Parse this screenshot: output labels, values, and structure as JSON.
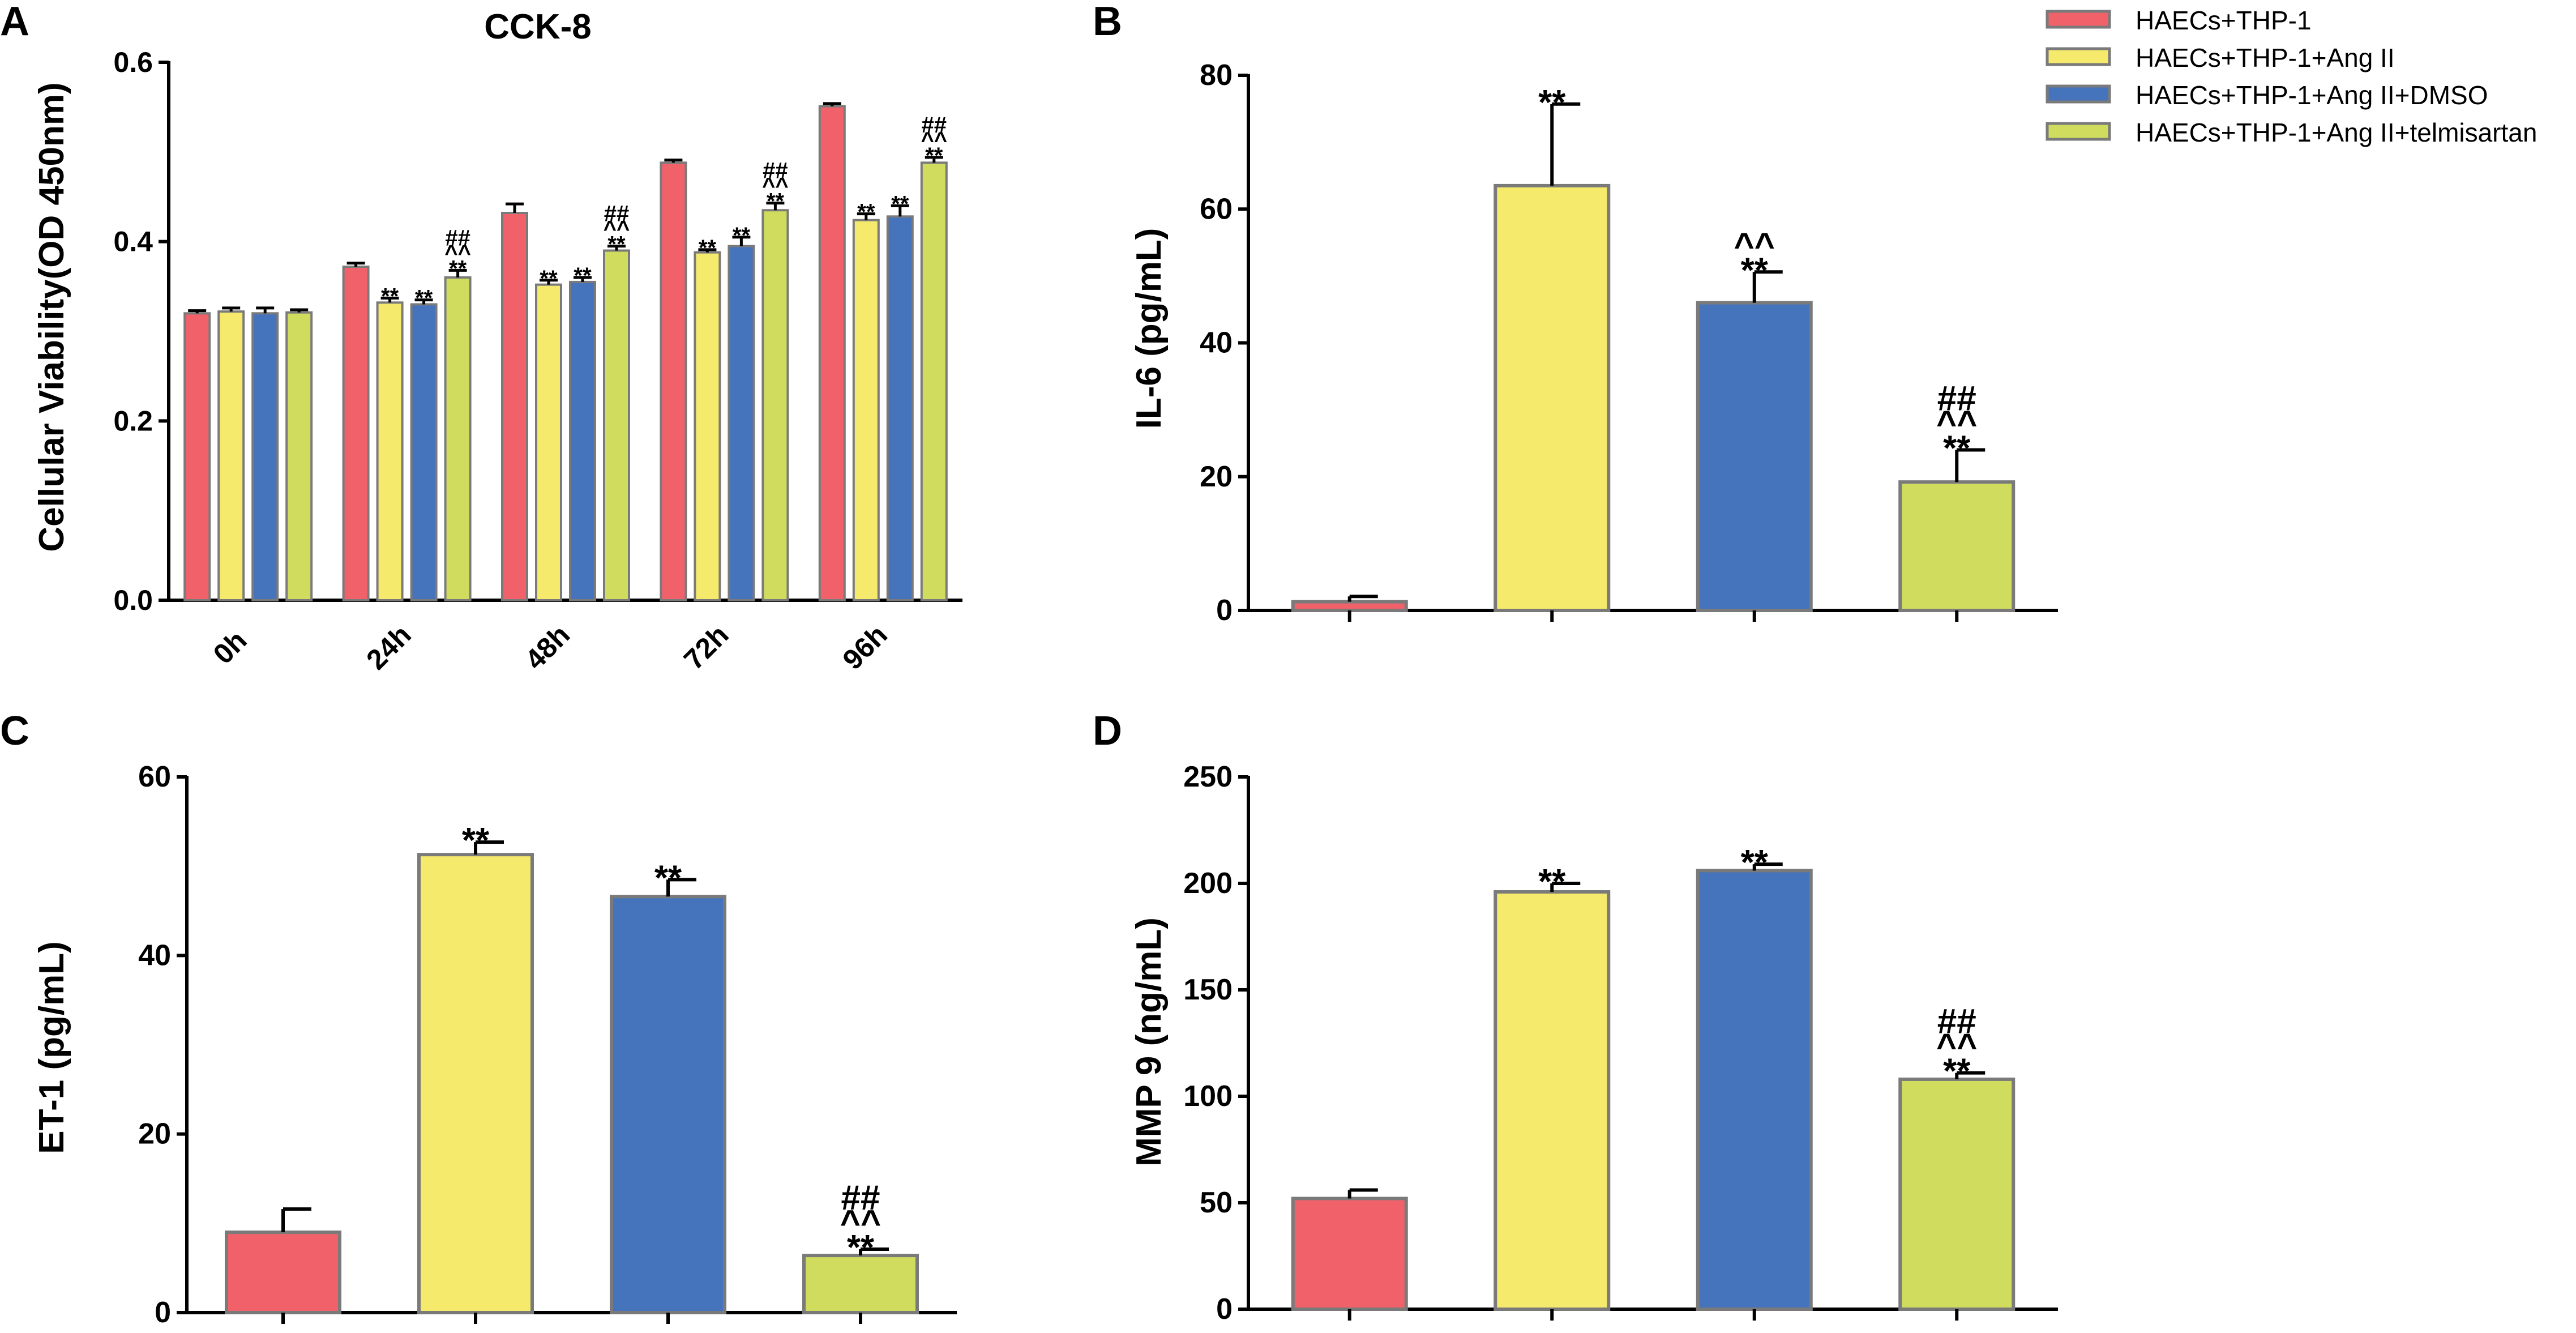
{
  "legend": {
    "entries": [
      {
        "label": "HAECs+THP-1",
        "color": "#f0616a"
      },
      {
        "label": "HAECs+THP-1+Ang II",
        "color": "#f5ea6b"
      },
      {
        "label": "HAECs+THP-1+Ang II+DMSO",
        "color": "#4574bc"
      },
      {
        "label": "HAECs+THP-1+Ang II+telmisartan",
        "color": "#cfdc5e"
      }
    ]
  },
  "chart_data": [
    {
      "panel": "A",
      "type": "bar",
      "title": "CCK-8",
      "ylabel": "Cellular Viability(OD 450nm)",
      "xlabel": "",
      "ylim": [
        0,
        0.6
      ],
      "yticks": [
        "0.0",
        "0.2",
        "0.4",
        "0.6"
      ],
      "categories": [
        "0h",
        "24h",
        "48h",
        "72h",
        "96h"
      ],
      "series": [
        {
          "name": "HAECs+THP-1",
          "color": "#f0616a",
          "values": [
            0.32,
            0.372,
            0.432,
            0.488,
            0.551
          ],
          "errors": [
            0.003,
            0.004,
            0.01,
            0.003,
            0.003
          ],
          "sig": [
            "",
            "",
            "",
            "",
            ""
          ]
        },
        {
          "name": "HAECs+THP-1+Ang II",
          "color": "#f5ea6b",
          "values": [
            0.322,
            0.332,
            0.352,
            0.388,
            0.424
          ],
          "errors": [
            0.004,
            0.005,
            0.005,
            0.003,
            0.007
          ],
          "sig": [
            "",
            "**",
            "**",
            "**",
            "**"
          ]
        },
        {
          "name": "HAECs+THP-1+Ang II+DMSO",
          "color": "#4574bc",
          "values": [
            0.32,
            0.33,
            0.355,
            0.395,
            0.428
          ],
          "errors": [
            0.006,
            0.005,
            0.005,
            0.01,
            0.012
          ],
          "sig": [
            "",
            "**",
            "**",
            "**",
            "**"
          ]
        },
        {
          "name": "HAECs+THP-1+Ang II+telmisartan",
          "color": "#cfdc5e",
          "values": [
            0.321,
            0.36,
            0.39,
            0.435,
            0.488
          ],
          "errors": [
            0.003,
            0.008,
            0.005,
            0.008,
            0.006
          ],
          "sig": [
            "",
            "**\n^^\n##",
            "**\n^^\n##",
            "**\n^^\n##",
            "**\n^^\n##"
          ]
        }
      ]
    },
    {
      "panel": "B",
      "type": "bar",
      "ylabel": "IL-6 (pg/mL)",
      "xlabel": "",
      "ylim": [
        0,
        80
      ],
      "yticks": [
        "0",
        "20",
        "40",
        "60",
        "80"
      ],
      "categories": [
        "HAECs+THP-1",
        "HAECs+THP-1+Ang II",
        "HAECs+THP-1+Ang II+DMSO",
        "HAECs+THP-1+Ang II+telmisartan"
      ],
      "values": [
        1.3,
        63.5,
        46.0,
        19.2
      ],
      "errors": [
        0.8,
        12.2,
        4.6,
        4.8
      ],
      "colors": [
        "#f0616a",
        "#f5ea6b",
        "#4574bc",
        "#cfdc5e"
      ],
      "sig": [
        "",
        "**",
        "**\n^^",
        "**\n^^\n##"
      ]
    },
    {
      "panel": "C",
      "type": "bar",
      "ylabel": "ET-1 (pg/mL)",
      "xlabel": "",
      "ylim": [
        0,
        60
      ],
      "yticks": [
        "0",
        "20",
        "40",
        "60"
      ],
      "categories": [
        "HAECs+THP-1",
        "HAECs+THP-1+Ang II",
        "HAECs+THP-1+Ang II+DMSO",
        "HAECs+THP-1+Ang II+telmisartan"
      ],
      "values": [
        9.0,
        51.3,
        46.6,
        6.4
      ],
      "errors": [
        2.6,
        1.4,
        1.9,
        0.7
      ],
      "colors": [
        "#f0616a",
        "#f5ea6b",
        "#4574bc",
        "#cfdc5e"
      ],
      "sig": [
        "",
        "**",
        "**",
        "**\n^^\n##"
      ]
    },
    {
      "panel": "D",
      "type": "bar",
      "ylabel": "MMP 9 (ng/mL)",
      "xlabel": "",
      "ylim": [
        0,
        250
      ],
      "yticks": [
        "0",
        "50",
        "100",
        "150",
        "200",
        "250"
      ],
      "categories": [
        "HAECs+THP-1",
        "HAECs+THP-1+Ang II",
        "HAECs+THP-1+Ang II+DMSO",
        "HAECs+THP-1+Ang II+telmisartan"
      ],
      "values": [
        52,
        196,
        206,
        108
      ],
      "errors": [
        4,
        4,
        3,
        3
      ],
      "colors": [
        "#f0616a",
        "#f5ea6b",
        "#4574bc",
        "#cfdc5e"
      ],
      "sig": [
        "",
        "**",
        "**",
        "**\n^^\n##"
      ]
    }
  ]
}
